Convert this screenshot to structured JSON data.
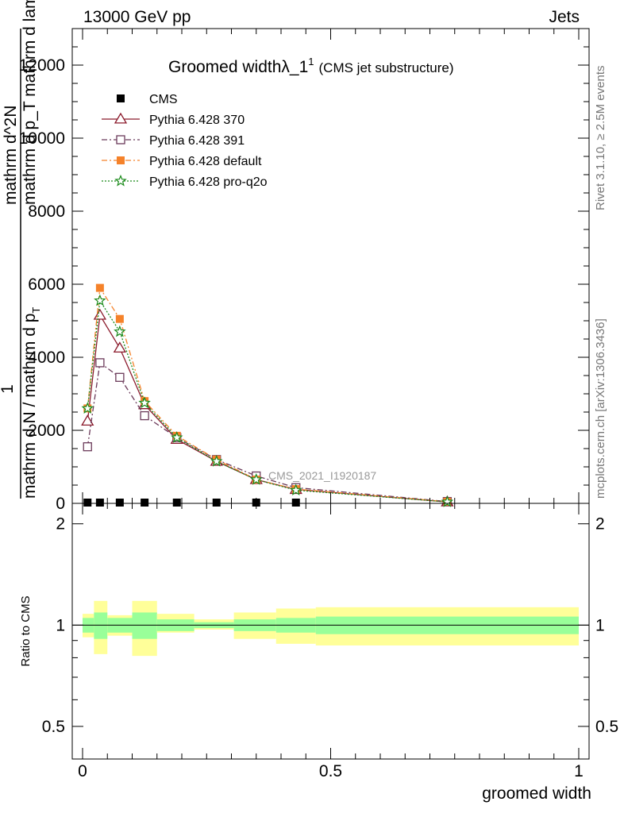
{
  "header": {
    "left": "13000 GeV pp",
    "right": "Jets"
  },
  "side_text": {
    "upper": "Rivet 3.1.10, ≥ 2.5M events",
    "lower": "mcplots.cern.ch [arXiv:1306.3436]"
  },
  "watermark": "CMS_2021_I1920187",
  "chart_data": [
    {
      "type": "line",
      "title": "Groomed widthλ_1",
      "title_sup": "1",
      "title_suffix": "(CMS jet substructure)",
      "ylabel_numerator": "1",
      "ylabel_lines": [
        "mathrm d N / mathrm d p",
        "mathrm d^2N",
        "mathrm d p_T mathrm d lambda"
      ],
      "ylabel_sub": "T",
      "xlabel": "groomed width",
      "xlim": [
        0,
        1
      ],
      "ylim": [
        0,
        13000
      ],
      "y_ticks": [
        2000,
        4000,
        6000,
        8000,
        10000,
        12000
      ],
      "y_tick_labels": [
        "2000",
        "4000",
        "6000",
        "8000",
        "10000",
        "12000"
      ],
      "y_tick_zero_label": "0",
      "x_tick_labels": [
        "0",
        "0.5",
        "1"
      ],
      "legend_position": "top-left",
      "series": [
        {
          "name": "CMS",
          "color": "#000000",
          "marker": "square-filled",
          "x": [
            0.01,
            0.035,
            0.075,
            0.125,
            0.19,
            0.27,
            0.35,
            0.43
          ],
          "values": [
            0,
            0,
            0,
            0,
            0,
            0,
            0,
            0
          ]
        },
        {
          "name": "Pythia 6.428 370",
          "color": "#8b1a2b",
          "marker": "triangle-open",
          "dash": "solid",
          "x": [
            0.01,
            0.035,
            0.075,
            0.125,
            0.19,
            0.27,
            0.35,
            0.43,
            0.735
          ],
          "values": [
            2250,
            5150,
            4250,
            2700,
            1750,
            1150,
            650,
            380,
            40
          ]
        },
        {
          "name": "Pythia 6.428 391",
          "color": "#6b3a5a",
          "marker": "square-open",
          "dash": "dash-dot",
          "x": [
            0.01,
            0.035,
            0.075,
            0.125,
            0.19,
            0.27,
            0.35,
            0.43,
            0.735
          ],
          "values": [
            1550,
            3850,
            3450,
            2400,
            1800,
            1200,
            750,
            430,
            50
          ]
        },
        {
          "name": "Pythia 6.428 default",
          "color": "#f5822a",
          "marker": "square-filled",
          "dash": "dash-dot",
          "x": [
            0.01,
            0.035,
            0.075,
            0.125,
            0.19,
            0.27,
            0.35,
            0.43,
            0.735
          ],
          "values": [
            2600,
            5900,
            5050,
            2800,
            1850,
            1200,
            650,
            390,
            45
          ]
        },
        {
          "name": "Pythia 6.428 pro-q2o",
          "color": "#1a8a1a",
          "marker": "star-open",
          "dash": "dotted",
          "x": [
            0.01,
            0.035,
            0.075,
            0.125,
            0.19,
            0.27,
            0.35,
            0.43,
            0.735
          ],
          "values": [
            2600,
            5550,
            4700,
            2750,
            1800,
            1150,
            650,
            360,
            40
          ]
        }
      ]
    },
    {
      "type": "area",
      "ylabel": "Ratio to CMS",
      "xlim": [
        0,
        1
      ],
      "ylim": [
        0.4,
        2.3
      ],
      "y_log": true,
      "y_ticks": [
        0.5,
        1,
        2
      ],
      "y_tick_labels": [
        "0.5",
        "1",
        "2"
      ],
      "bands": {
        "edges": [
          0,
          0.023,
          0.05,
          0.1,
          0.15,
          0.225,
          0.305,
          0.39,
          0.47,
          1.0
        ],
        "inner_color": "#99ff99",
        "outer_color": "#ffff99",
        "inner_lo": [
          0.95,
          0.91,
          0.95,
          0.91,
          0.96,
          0.98,
          0.96,
          0.95,
          0.94
        ],
        "inner_hi": [
          1.05,
          1.09,
          1.05,
          1.09,
          1.04,
          1.02,
          1.04,
          1.05,
          1.06
        ],
        "outer_lo": [
          0.92,
          0.82,
          0.93,
          0.81,
          0.95,
          0.97,
          0.91,
          0.88,
          0.87
        ],
        "outer_hi": [
          1.08,
          1.18,
          1.07,
          1.18,
          1.08,
          1.04,
          1.09,
          1.12,
          1.13
        ]
      }
    }
  ]
}
